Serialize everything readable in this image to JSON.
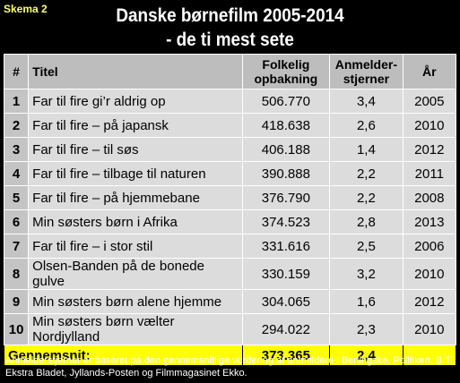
{
  "header": {
    "label": "Skema 2",
    "title": "Danske børnefilm 2005-2014",
    "subtitle": "- de ti mest sete"
  },
  "table": {
    "columns": [
      "#",
      "Titel",
      "Folkelig opbakning",
      "Anmelder-stjerner",
      "År"
    ],
    "rows": [
      [
        "1",
        "Far til fire gi’r aldrig op",
        "506.770",
        "3,4",
        "2005"
      ],
      [
        "2",
        "Far til fire – på japansk",
        "418.638",
        "2,6",
        "2010"
      ],
      [
        "3",
        "Far til fire – til søs",
        "406.188",
        "1,4",
        "2012"
      ],
      [
        "4",
        "Far til fire – tilbage til naturen",
        "390.888",
        "2,2",
        "2011"
      ],
      [
        "5",
        "Far til fire – på hjemmebane",
        "376.790",
        "2,2",
        "2008"
      ],
      [
        "6",
        "Min søsters børn i Afrika",
        "374.523",
        "2,8",
        "2013"
      ],
      [
        "7",
        "Far til fire – i stor stil",
        "331.616",
        "2,5",
        "2006"
      ],
      [
        "8",
        "Olsen-Banden på de bonede gulve",
        "330.159",
        "3,2",
        "2010"
      ],
      [
        "9",
        "Min søsters børn alene hjemme",
        "304.065",
        "1,6",
        "2012"
      ],
      [
        "10",
        "Min søsters børn vælter Nordjylland",
        "294.022",
        "2,3",
        "2010"
      ]
    ],
    "average": {
      "label": "Gennemsnit:",
      "audience": "373.365",
      "stars": "2,4"
    }
  },
  "note": "Anmelderstjerner er baseret på den gennemsnitlige vurdering af anmeldere i Berlingske, Politiken, B.T., Ekstra Bladet, Jyllands-Posten og Filmmagasinet Ekko."
}
